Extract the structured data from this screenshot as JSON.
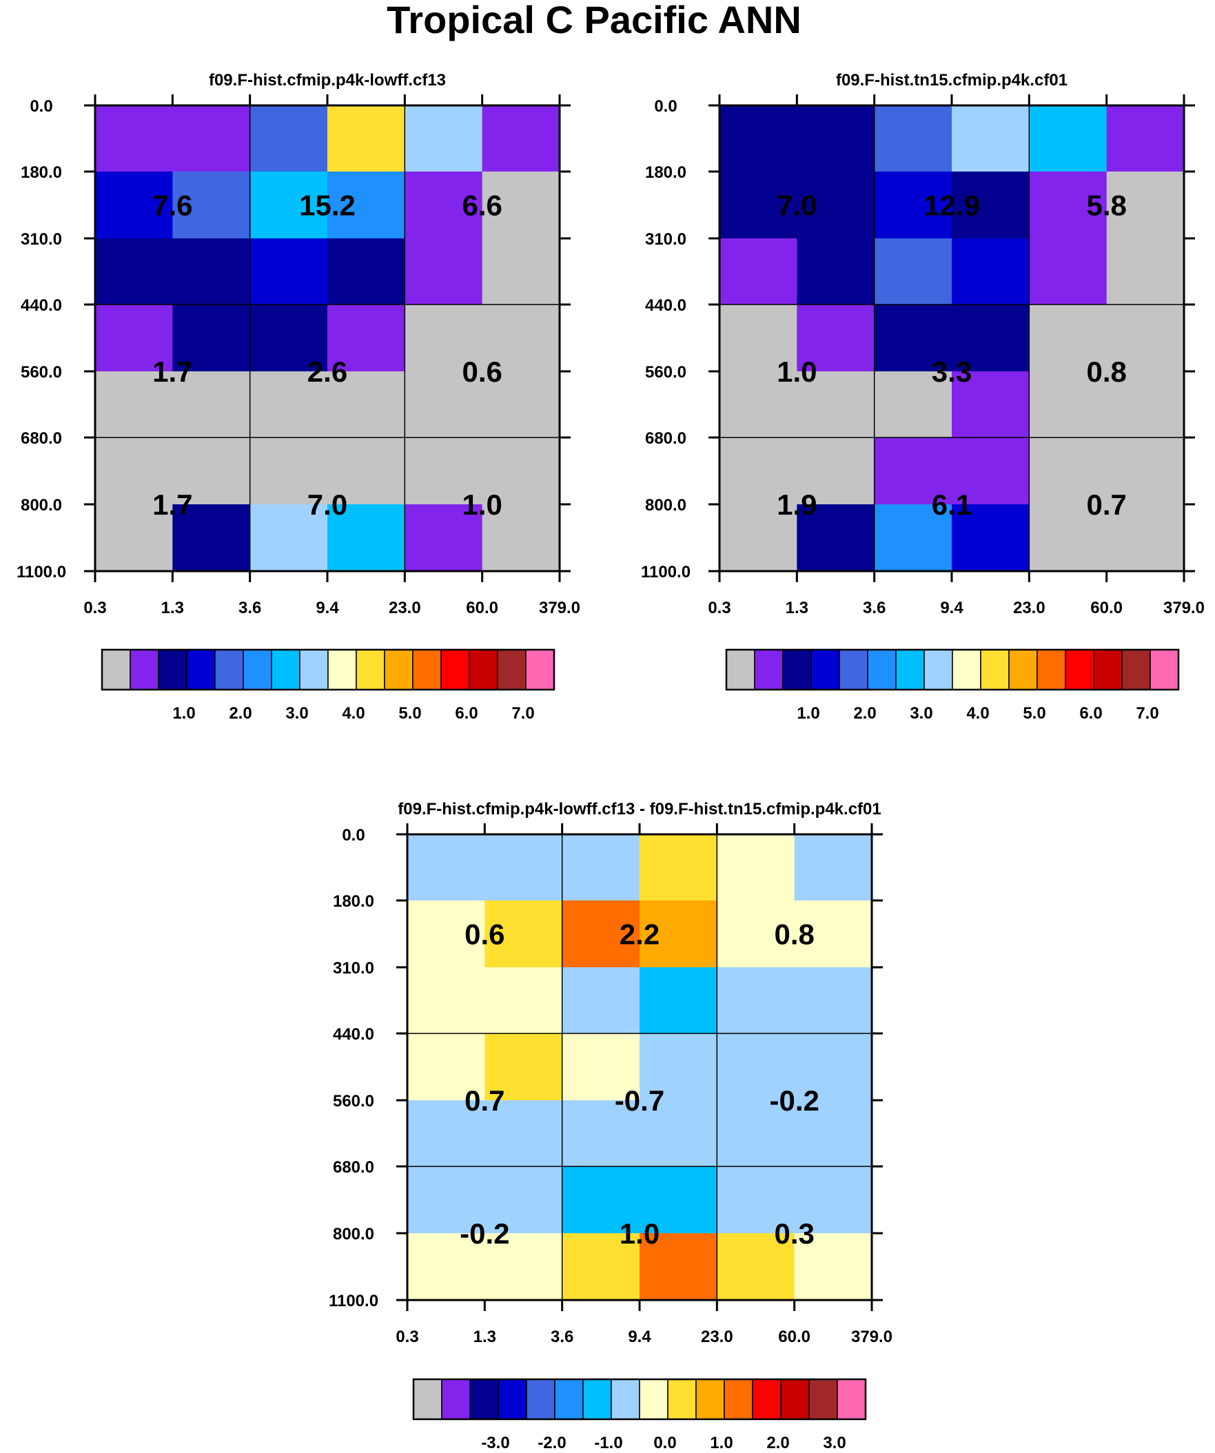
{
  "title": "Tropical C Pacific ANN",
  "chart_data": [
    {
      "type": "heatmap",
      "title": "f09.F-hist.cfmip.p4k-lowff.cf13",
      "x_edges": [
        "0.3",
        "1.3",
        "3.6",
        "9.4",
        "23.0",
        "60.0",
        "379.0"
      ],
      "y_edges": [
        "0.0",
        "180.0",
        "310.0",
        "440.0",
        "560.0",
        "680.0",
        "800.0",
        "1100.0"
      ],
      "cells": [
        [
          1,
          1,
          4,
          9,
          7,
          1
        ],
        [
          3,
          4,
          6,
          5,
          1,
          0
        ],
        [
          2,
          2,
          3,
          2,
          1,
          0
        ],
        [
          1,
          2,
          2,
          1,
          0,
          0
        ],
        [
          0,
          0,
          0,
          0,
          0,
          0
        ],
        [
          0,
          0,
          0,
          0,
          0,
          0
        ],
        [
          0,
          2,
          7,
          6,
          1,
          0
        ]
      ],
      "group_labels": [
        [
          "7.6",
          "15.2",
          "6.6"
        ],
        [
          "1.7",
          "2.6",
          "0.6"
        ],
        [
          "1.7",
          "7.0",
          "1.0"
        ]
      ],
      "colorbar": {
        "tick_labels": [
          "1.0",
          "2.0",
          "3.0",
          "4.0",
          "5.0",
          "6.0",
          "7.0"
        ]
      }
    },
    {
      "type": "heatmap",
      "title": "f09.F-hist.tn15.cfmip.p4k.cf01",
      "x_edges": [
        "0.3",
        "1.3",
        "3.6",
        "9.4",
        "23.0",
        "60.0",
        "379.0"
      ],
      "y_edges": [
        "0.0",
        "180.0",
        "310.0",
        "440.0",
        "560.0",
        "680.0",
        "800.0",
        "1100.0"
      ],
      "cells": [
        [
          2,
          2,
          4,
          7,
          6,
          1
        ],
        [
          2,
          2,
          3,
          2,
          1,
          0
        ],
        [
          1,
          2,
          4,
          3,
          1,
          0
        ],
        [
          0,
          1,
          2,
          2,
          0,
          0
        ],
        [
          0,
          0,
          0,
          1,
          0,
          0
        ],
        [
          0,
          0,
          1,
          1,
          0,
          0
        ],
        [
          0,
          2,
          5,
          3,
          0,
          0
        ]
      ],
      "group_labels": [
        [
          "7.0",
          "12.9",
          "5.8"
        ],
        [
          "1.0",
          "3.3",
          "0.8"
        ],
        [
          "1.9",
          "6.1",
          "0.7"
        ]
      ],
      "colorbar": {
        "tick_labels": [
          "1.0",
          "2.0",
          "3.0",
          "4.0",
          "5.0",
          "6.0",
          "7.0"
        ]
      }
    },
    {
      "type": "heatmap",
      "title": "f09.F-hist.cfmip.p4k-lowff.cf13 - f09.F-hist.tn15.cfmip.p4k.cf01",
      "x_edges": [
        "0.3",
        "1.3",
        "3.6",
        "9.4",
        "23.0",
        "60.0",
        "379.0"
      ],
      "y_edges": [
        "0.0",
        "180.0",
        "310.0",
        "440.0",
        "560.0",
        "680.0",
        "800.0",
        "1100.0"
      ],
      "cells": [
        [
          7,
          7,
          7,
          9,
          8,
          7
        ],
        [
          8,
          9,
          11,
          10,
          8,
          8
        ],
        [
          8,
          8,
          7,
          6,
          7,
          7
        ],
        [
          8,
          9,
          8,
          7,
          7,
          7
        ],
        [
          7,
          7,
          7,
          7,
          7,
          7
        ],
        [
          7,
          7,
          6,
          6,
          7,
          7
        ],
        [
          8,
          8,
          9,
          11,
          9,
          8
        ]
      ],
      "group_labels": [
        [
          "0.6",
          "2.2",
          "0.8"
        ],
        [
          "0.7",
          "-0.7",
          "-0.2"
        ],
        [
          "-0.2",
          "1.0",
          "0.3"
        ]
      ],
      "colorbar": {
        "tick_labels": [
          "-3.0",
          "-2.0",
          "-1.0",
          "0.0",
          "1.0",
          "2.0",
          "3.0"
        ]
      }
    }
  ],
  "palette": [
    "#c4c4c4",
    "#8224ec",
    "#03008f",
    "#0000d2",
    "#4066e0",
    "#1e90ff",
    "#00bfff",
    "#a0d2ff",
    "#ffffc8",
    "#ffe031",
    "#ffaa00",
    "#ff6d00",
    "#ff0000",
    "#c80000",
    "#a02828",
    "#ff69b4"
  ]
}
